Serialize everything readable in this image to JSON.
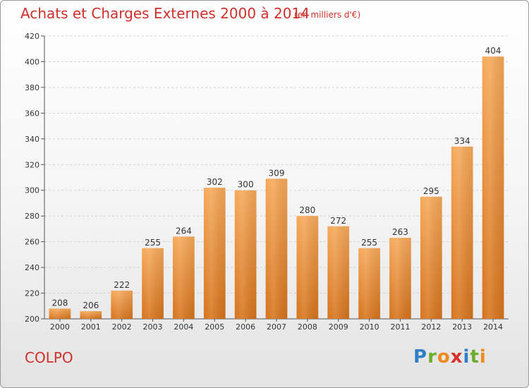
{
  "title": "Achats et Charges Externes 2000 à 2014",
  "unit_note": "(en milliers d'€)",
  "commune": "COLPO",
  "logo": {
    "letters": [
      "P",
      "r",
      "o",
      "x",
      "i",
      "t",
      "i"
    ],
    "colors": [
      "#2f7fc8",
      "#6dad2c",
      "#ef8a1a",
      "#d8302a",
      "#2f7fc8",
      "#6dad2c",
      "#ef8a1a"
    ]
  },
  "colors": {
    "bar_light": "#f6a95a",
    "bar_dark": "#d6731c",
    "title": "#d0302a"
  },
  "chart_data": {
    "type": "bar",
    "categories": [
      "2000",
      "2001",
      "2002",
      "2003",
      "2004",
      "2005",
      "2006",
      "2007",
      "2008",
      "2009",
      "2010",
      "2011",
      "2012",
      "2013",
      "2014"
    ],
    "values": [
      208,
      206,
      222,
      255,
      264,
      302,
      300,
      309,
      280,
      272,
      255,
      263,
      295,
      334,
      404
    ],
    "ylim": [
      200,
      420
    ],
    "yticks": [
      200,
      220,
      240,
      260,
      280,
      300,
      320,
      340,
      360,
      380,
      400,
      420
    ],
    "grid": true,
    "data_labels": true
  }
}
